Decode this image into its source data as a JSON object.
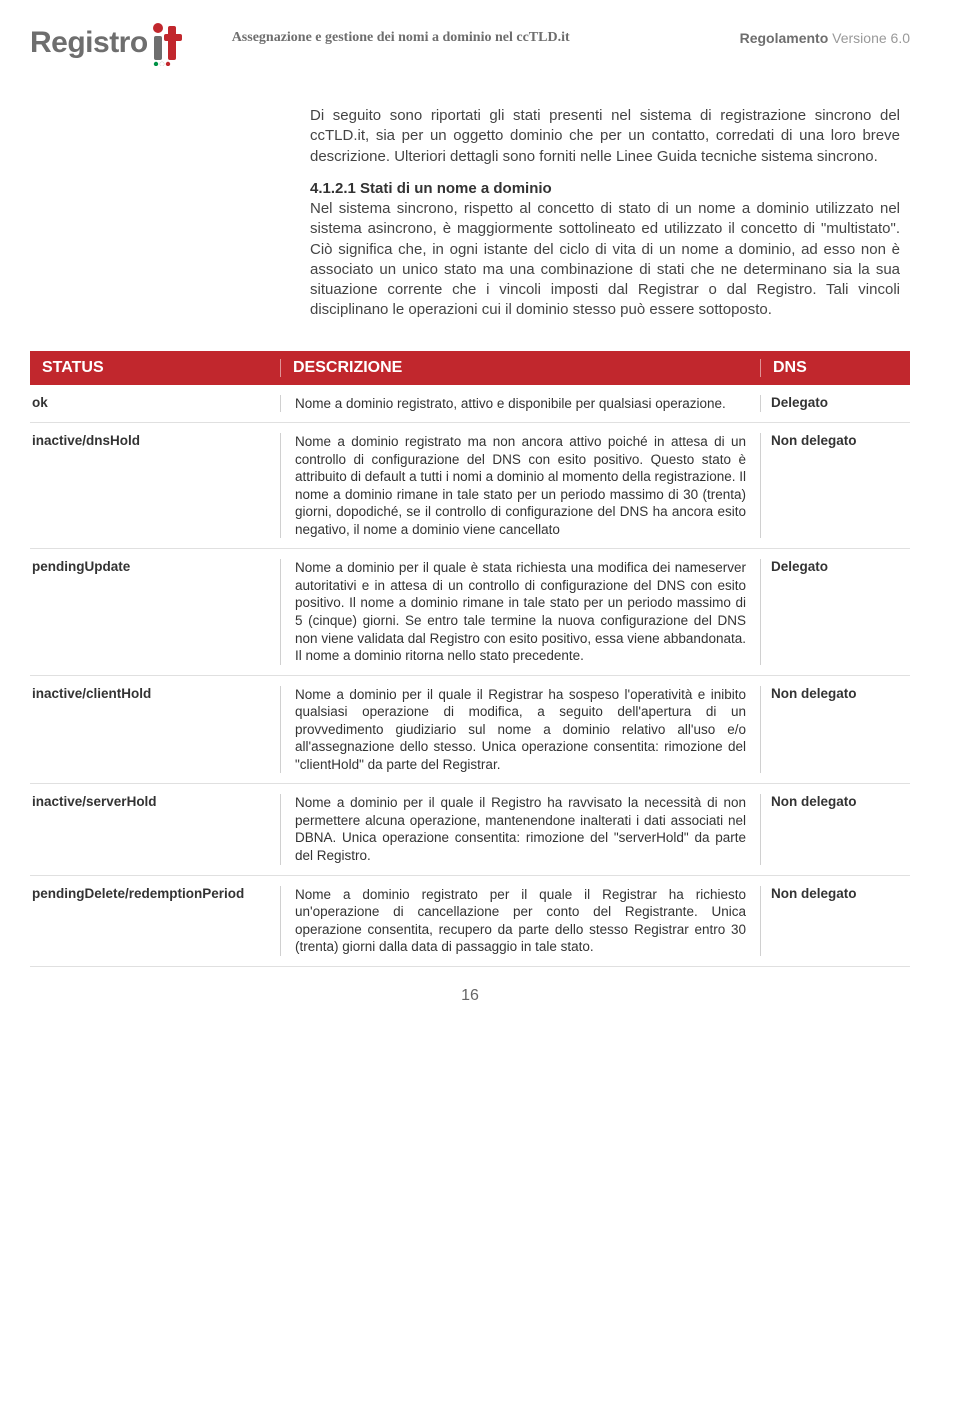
{
  "header": {
    "logo_text": "Registro",
    "center": "Assegnazione e gestione dei nomi a dominio nel ccTLD.it",
    "right_bold": "Regolamento",
    "right_light": " Versione 6.0"
  },
  "intro": {
    "para1": "Di seguito sono riportati gli stati presenti nel sistema di registrazione sincrono del ccTLD.it, sia per un oggetto dominio che per un contatto, corredati di una loro breve descrizione. Ulteriori dettagli sono forniti nelle Linee Guida tecniche sistema sincrono.",
    "section_num": "4.1.2.1 Stati di un nome a dominio",
    "para2": "Nel sistema sincrono, rispetto al concetto di stato di un nome a dominio utilizzato nel sistema asincrono, è maggiormente sottolineato ed utilizzato il concetto di \"multistato\". Ciò significa che, in ogni istante del ciclo di vita di un nome a dominio, ad esso non è associato un unico stato ma una combinazione di stati che ne determinano sia la sua situazione corrente che i vincoli imposti dal Registrar o dal Registro. Tali vincoli disciplinano le operazioni cui il dominio stesso può essere sottoposto."
  },
  "table": {
    "headers": {
      "status": "STATUS",
      "desc": "DESCRIZIONE",
      "dns": "DNS"
    },
    "rows": [
      {
        "status": "ok",
        "desc": "Nome a dominio registrato, attivo e disponibile per qualsiasi operazione.",
        "dns": "Delegato"
      },
      {
        "status": "inactive/dnsHold",
        "desc": "Nome a dominio registrato ma non ancora attivo poiché in attesa di un controllo di configurazione del DNS con esito positivo. Questo stato è attribuito di default a tutti i nomi a dominio al momento della registrazione. Il nome a dominio rimane in tale stato per un periodo massimo di 30 (trenta) giorni, dopodiché, se il controllo di configurazione del DNS ha ancora esito negativo, il nome a dominio viene cancellato",
        "dns": "Non delegato"
      },
      {
        "status": "pendingUpdate",
        "desc": "Nome a dominio per il quale è stata richiesta una modifica dei nameserver autoritativi e in attesa di un controllo di configurazione del DNS con esito positivo. Il nome a dominio rimane in tale stato per un periodo massimo di 5 (cinque) giorni. Se entro tale termine la nuova configurazione del DNS non viene validata dal Registro con esito positivo, essa viene abbandonata. Il nome a dominio ritorna nello stato precedente.",
        "dns": "Delegato"
      },
      {
        "status": "inactive/clientHold",
        "desc": "Nome a dominio per il quale il Registrar ha sospeso l'operatività e inibito qualsiasi operazione di modifica, a seguito dell'apertura di un provvedimento giudiziario sul nome a dominio relativo all'uso e/o all'assegnazione dello stesso. Unica operazione consentita: rimozione del \"clientHold\" da parte del Registrar.",
        "dns": "Non delegato"
      },
      {
        "status": "inactive/serverHold",
        "desc": "Nome a dominio per il quale il Registro ha ravvisato la necessità di non permettere alcuna operazione, mantenendone inalterati i dati associati nel DBNA. Unica operazione consentita: rimozione del \"serverHold\" da parte del Registro.",
        "dns": "Non delegato"
      },
      {
        "status": "pendingDelete/redemptionPeriod",
        "desc": "Nome a dominio registrato per il quale il Registrar ha richiesto un'operazione di cancellazione per conto del Registrante. Unica operazione consentita, recupero da parte dello stesso Registrar entro 30 (trenta) giorni dalla data di passaggio in tale stato.",
        "dns": "Non delegato"
      }
    ]
  },
  "page_number": "16",
  "colors": {
    "header_bg": "#c1272d",
    "text": "#333333",
    "muted": "#6e6e6e"
  }
}
